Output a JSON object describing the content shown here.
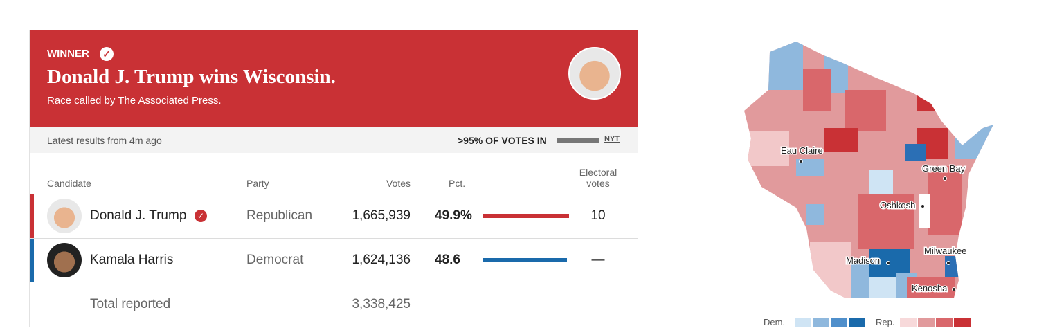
{
  "banner": {
    "label": "WINNER",
    "headline": "Donald J. Trump wins Wisconsin.",
    "subline": "Race called by The Associated Press."
  },
  "status": {
    "updated": "Latest results from 4m ago",
    "reporting": ">95% OF VOTES IN",
    "source": "NYT"
  },
  "table": {
    "headers": [
      "Candidate",
      "Party",
      "Votes",
      "Pct.",
      "Electoral votes"
    ],
    "candidates": [
      {
        "name": "Donald J. Trump",
        "party": "Republican",
        "votes": "1,665,939",
        "pct": 49.9,
        "pct_label": "49.9%",
        "electoral": "10",
        "color": "#c93135"
      },
      {
        "name": "Kamala Harris",
        "party": "Democrat",
        "votes": "1,624,136",
        "pct": 48.6,
        "pct_label": "48.6",
        "electoral": "—",
        "color": "#1a6aab"
      }
    ],
    "total_label": "Total reported",
    "total_votes": "3,338,425"
  },
  "map": {
    "cities": [
      "Eau Claire",
      "Green Bay",
      "Oshkosh",
      "Madison",
      "Milwaukee",
      "Kenosha"
    ],
    "legend": [
      "Dem.",
      "Rep."
    ]
  }
}
